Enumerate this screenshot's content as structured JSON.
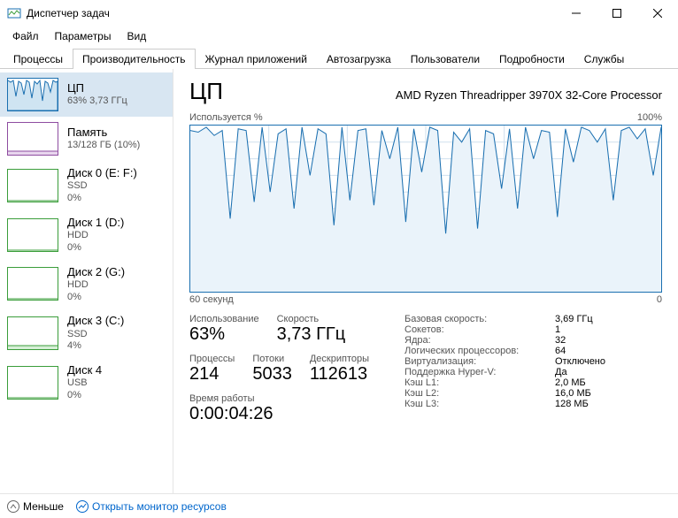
{
  "window": {
    "title": "Диспетчер задач"
  },
  "menu": [
    "Файл",
    "Параметры",
    "Вид"
  ],
  "tabs": {
    "items": [
      "Процессы",
      "Производительность",
      "Журнал приложений",
      "Автозагрузка",
      "Пользователи",
      "Подробности",
      "Службы"
    ],
    "active_index": 1
  },
  "sidebar": [
    {
      "title": "ЦП",
      "sub1": "63% 3,73 ГГц",
      "sub2": "",
      "selected": true,
      "thumb": {
        "color": "#1a6fb0",
        "fill": "#cfe4f2",
        "type": "spiky"
      }
    },
    {
      "title": "Память",
      "sub1": "13/128 ГБ (10%)",
      "sub2": "",
      "thumb": {
        "color": "#8e4ca0",
        "fill": "#e8d6ee",
        "type": "flat_low"
      }
    },
    {
      "title": "Диск 0 (E: F:)",
      "sub1": "SSD",
      "sub2": "0%",
      "thumb": {
        "color": "#3a9d3a",
        "fill": "#d6efd6",
        "type": "flat_zero"
      }
    },
    {
      "title": "Диск 1 (D:)",
      "sub1": "HDD",
      "sub2": "0%",
      "thumb": {
        "color": "#3a9d3a",
        "fill": "#d6efd6",
        "type": "flat_zero"
      }
    },
    {
      "title": "Диск 2 (G:)",
      "sub1": "HDD",
      "sub2": "0%",
      "thumb": {
        "color": "#3a9d3a",
        "fill": "#d6efd6",
        "type": "flat_zero"
      }
    },
    {
      "title": "Диск 3 (C:)",
      "sub1": "SSD",
      "sub2": "4%",
      "thumb": {
        "color": "#3a9d3a",
        "fill": "#d6efd6",
        "type": "flat_low"
      }
    },
    {
      "title": "Диск 4",
      "sub1": "USB",
      "sub2": "0%",
      "thumb": {
        "color": "#3a9d3a",
        "fill": "#d6efd6",
        "type": "flat_zero"
      }
    }
  ],
  "main": {
    "title": "ЦП",
    "subtitle": "AMD Ryzen Threadripper 3970X 32-Core Processor",
    "chart": {
      "top_left_label": "Используется %",
      "top_right_label": "100%",
      "bottom_left_label": "60 секунд",
      "bottom_right_label": "0",
      "border_color": "#1a6fb0",
      "grid_color": "#d0e0ee",
      "line_color": "#1a6fb0",
      "fill_color": "#eaf3fa",
      "ylim": [
        0,
        100
      ],
      "values": [
        97,
        96,
        99,
        94,
        97,
        44,
        98,
        97,
        54,
        99,
        60,
        95,
        98,
        50,
        99,
        70,
        98,
        95,
        40,
        99,
        55,
        97,
        98,
        52,
        97,
        80,
        99,
        42,
        98,
        72,
        99,
        97,
        35,
        96,
        90,
        98,
        38,
        97,
        95,
        62,
        98,
        50,
        99,
        80,
        97,
        96,
        45,
        98,
        78,
        99,
        97,
        90,
        98,
        55,
        97,
        99,
        92,
        98,
        70,
        99
      ]
    },
    "big_stats": [
      {
        "label": "Использование",
        "value": "63%"
      },
      {
        "label": "Скорость",
        "value": "3,73 ГГц"
      }
    ],
    "mid_stats": [
      {
        "label": "Процессы",
        "value": "214"
      },
      {
        "label": "Потоки",
        "value": "5033"
      },
      {
        "label": "Дескрипторы",
        "value": "112613"
      }
    ],
    "uptime": {
      "label": "Время работы",
      "value": "0:00:04:26"
    },
    "kv": [
      {
        "k": "Базовая скорость:",
        "v": "3,69 ГГц"
      },
      {
        "k": "Сокетов:",
        "v": "1"
      },
      {
        "k": "Ядра:",
        "v": "32"
      },
      {
        "k": "Логических процессоров:",
        "v": "64"
      },
      {
        "k": "Виртуализация:",
        "v": "Отключено"
      },
      {
        "k": "Поддержка Hyper-V:",
        "v": "Да"
      },
      {
        "k": "Кэш L1:",
        "v": "2,0 МБ"
      },
      {
        "k": "Кэш L2:",
        "v": "16,0 МБ"
      },
      {
        "k": "Кэш L3:",
        "v": "128 МБ"
      }
    ]
  },
  "footer": {
    "fewer": "Меньше",
    "link": "Открыть монитор ресурсов"
  },
  "colors": {
    "accent_cpu": "#1a6fb0",
    "accent_mem": "#8e4ca0",
    "accent_disk": "#3a9d3a",
    "link": "#0066cc"
  }
}
